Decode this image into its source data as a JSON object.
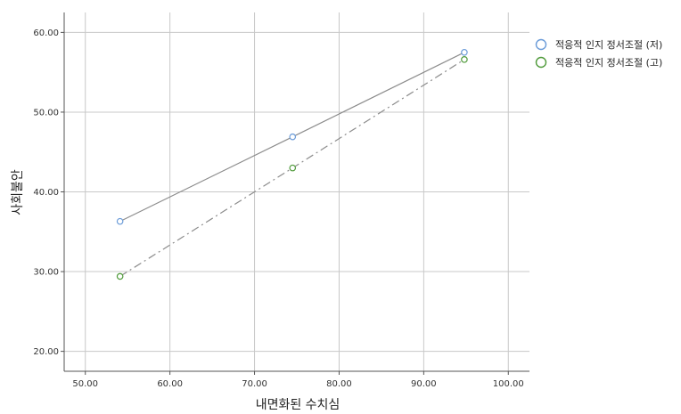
{
  "chart_data": {
    "type": "scatter",
    "xlabel": "내면화된 수치심",
    "ylabel": "사회불안",
    "xlim": [
      47.5,
      102.5
    ],
    "ylim": [
      17.5,
      62.5
    ],
    "x_ticks": [
      "50.00",
      "60.00",
      "70.00",
      "80.00",
      "90.00",
      "100.00"
    ],
    "y_ticks": [
      "20.00",
      "30.00",
      "40.00",
      "50.00",
      "60.00"
    ],
    "x_tick_values": [
      50,
      60,
      70,
      80,
      90,
      100
    ],
    "y_tick_values": [
      20,
      30,
      40,
      50,
      60
    ],
    "grid": true,
    "legend_position": "top-right",
    "series": [
      {
        "name": "적응적 인지 정서조절 (저)",
        "color": "#6a9bd8",
        "line_color": "#8c8c8c",
        "line_style": "solid",
        "marker": "open-circle",
        "x": [
          54.1,
          74.5,
          94.8
        ],
        "y": [
          36.3,
          46.9,
          57.5
        ]
      },
      {
        "name": "적응적 인지 정서조절 (고)",
        "color": "#4f9a3a",
        "line_color": "#8c8c8c",
        "line_style": "dash-dot",
        "marker": "open-circle",
        "x": [
          54.1,
          74.5,
          94.8
        ],
        "y": [
          29.4,
          43.0,
          56.6
        ]
      }
    ]
  }
}
